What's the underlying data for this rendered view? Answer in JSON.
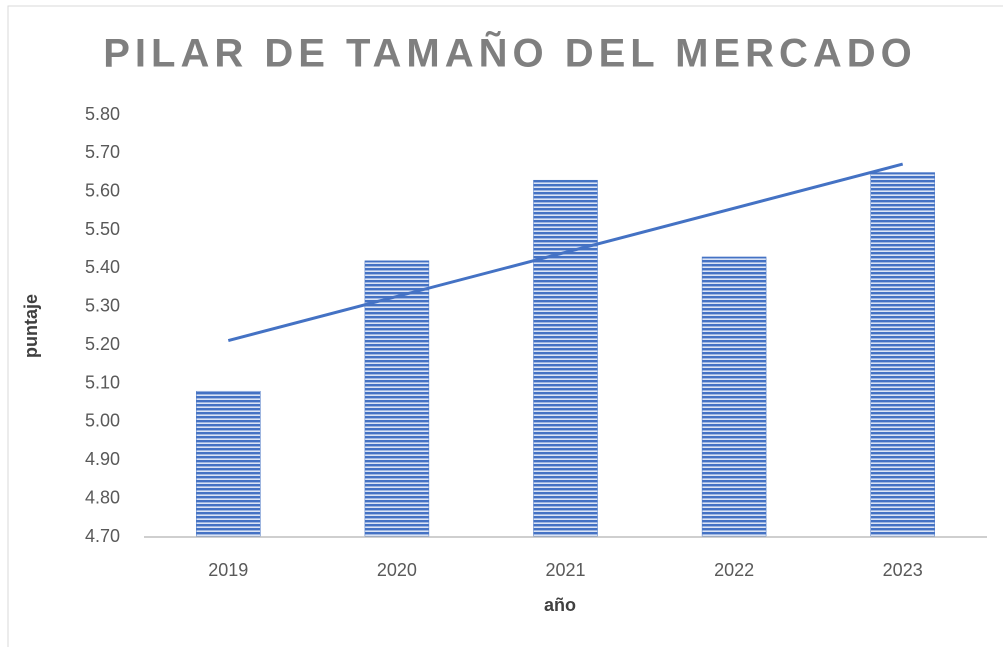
{
  "chart_data": {
    "type": "bar",
    "title": "PILAR DE TAMAÑO DEL MERCADO",
    "x_label": "año",
    "y_label": "puntaje",
    "categories": [
      "2019",
      "2020",
      "2021",
      "2022",
      "2023"
    ],
    "values": [
      5.08,
      5.42,
      5.63,
      5.43,
      5.65
    ],
    "color": "#4472c4",
    "trendline": "linear",
    "ylim": [
      4.7,
      5.8
    ],
    "yticks": [
      {
        "value": 4.7,
        "label": "4.70"
      },
      {
        "value": 4.8,
        "label": "4.80"
      },
      {
        "value": 4.9,
        "label": "4.90"
      },
      {
        "value": 5.0,
        "label": "5.00"
      },
      {
        "value": 5.1,
        "label": "5.10"
      },
      {
        "value": 5.2,
        "label": "5.20"
      },
      {
        "value": 5.3,
        "label": "5.30"
      },
      {
        "value": 5.4,
        "label": "5.40"
      },
      {
        "value": 5.5,
        "label": "5.50"
      },
      {
        "value": 5.6,
        "label": "5.60"
      },
      {
        "value": 5.7,
        "label": "5.70"
      },
      {
        "value": 5.8,
        "label": "5.80"
      }
    ],
    "grid": false
  }
}
